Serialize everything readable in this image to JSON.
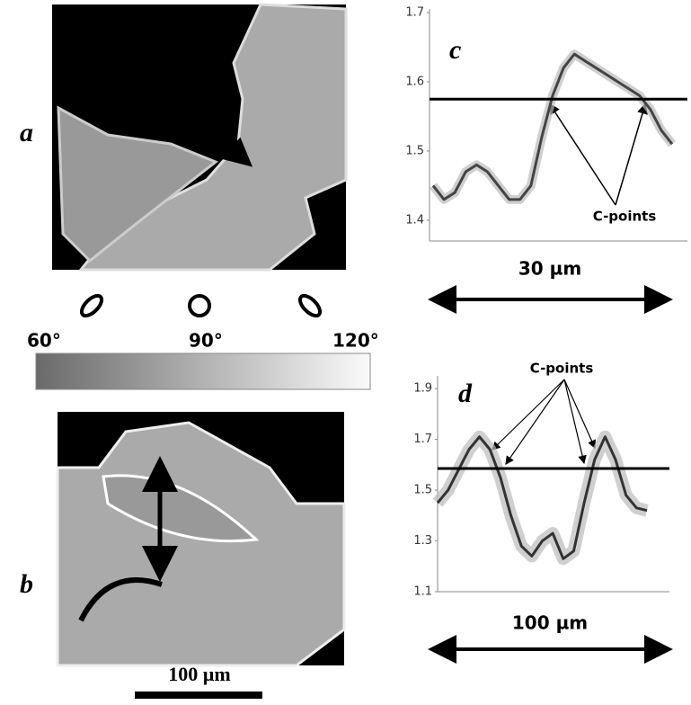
{
  "panels": {
    "a": "a",
    "b": "b",
    "colorbar_labels": [
      "60°",
      "90°",
      "120°"
    ],
    "scale_bar": "100 µm"
  },
  "chart_data": [
    {
      "type": "line",
      "title": "c",
      "xlabel": "30 µm",
      "annotation": "C-points",
      "values": [
        1.45,
        1.43,
        1.44,
        1.47,
        1.48,
        1.47,
        1.45,
        1.43,
        1.43,
        1.45,
        1.52,
        1.58,
        1.62,
        1.64,
        1.63,
        1.62,
        1.61,
        1.6,
        1.59,
        1.58,
        1.56,
        1.53,
        1.51
      ],
      "hline": 1.575,
      "color": "#444444",
      "ylim": [
        1.37,
        1.7
      ],
      "yticks": [
        1.4,
        1.5,
        1.6,
        1.7
      ]
    },
    {
      "type": "line",
      "title": "d",
      "xlabel": "100 µm",
      "annotation": "C-points",
      "values": [
        1.45,
        1.5,
        1.58,
        1.66,
        1.71,
        1.66,
        1.55,
        1.4,
        1.28,
        1.24,
        1.3,
        1.33,
        1.23,
        1.26,
        1.45,
        1.62,
        1.71,
        1.62,
        1.48,
        1.43,
        1.42
      ],
      "hline": 1.585,
      "color": "#333333",
      "ylim": [
        1.1,
        1.95
      ],
      "yticks": [
        1.1,
        1.3,
        1.5,
        1.7,
        1.9
      ]
    }
  ]
}
